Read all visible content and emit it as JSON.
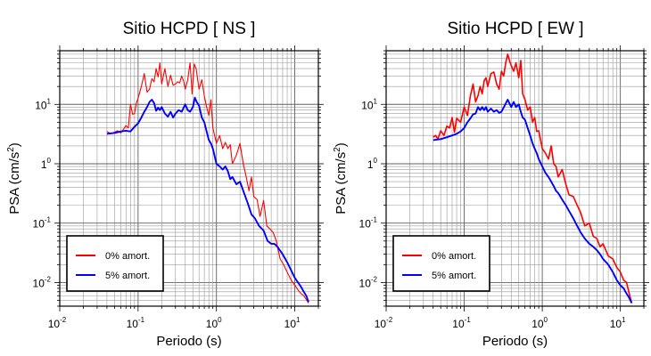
{
  "chart_data": [
    {
      "type": "line",
      "title": "Sitio HCPD [ NS ]",
      "xlabel": "Periodo (s)",
      "ylabel": "PSA (cm/s2)",
      "x_scale": "log",
      "y_scale": "log",
      "xlim": [
        0.01,
        20
      ],
      "ylim": [
        0.004,
        80
      ],
      "x_ticks": [
        {
          "base": "10",
          "exp": "-2"
        },
        {
          "base": "10",
          "exp": "-1"
        },
        {
          "base": "10",
          "exp": "0"
        },
        {
          "base": "10",
          "exp": "1"
        }
      ],
      "y_ticks": [
        {
          "base": "10",
          "exp": "-2"
        },
        {
          "base": "10",
          "exp": "-1"
        },
        {
          "base": "1",
          "exp": "0"
        },
        {
          "base": "10",
          "exp": "1"
        }
      ],
      "grid": true,
      "legend_position": "bottom-left",
      "series": [
        {
          "name": "0% amort.",
          "color": "#ff0000",
          "x": [
            0.04,
            0.045,
            0.05,
            0.055,
            0.06,
            0.065,
            0.07,
            0.075,
            0.08,
            0.085,
            0.09,
            0.095,
            0.1,
            0.11,
            0.12,
            0.13,
            0.14,
            0.15,
            0.16,
            0.17,
            0.18,
            0.19,
            0.2,
            0.22,
            0.24,
            0.26,
            0.28,
            0.3,
            0.32,
            0.34,
            0.36,
            0.38,
            0.4,
            0.43,
            0.46,
            0.49,
            0.52,
            0.55,
            0.6,
            0.65,
            0.7,
            0.75,
            0.8,
            0.85,
            0.9,
            1.0,
            1.1,
            1.2,
            1.3,
            1.4,
            1.5,
            1.6,
            1.8,
            2.0,
            2.2,
            2.4,
            2.6,
            2.8,
            3.0,
            3.3,
            3.6,
            4.0,
            4.4,
            4.8,
            5.3,
            5.8,
            6.5,
            7.2,
            8,
            9,
            10,
            11,
            12,
            13,
            14,
            15
          ],
          "values": [
            3.5,
            3.2,
            3.4,
            3.6,
            3.3,
            3.8,
            4.4,
            4.0,
            10.0,
            6.8,
            7.0,
            10.5,
            12.8,
            20.0,
            33.0,
            16.0,
            18.0,
            27.0,
            24.0,
            40.0,
            29.0,
            50.0,
            22.0,
            40.0,
            20.0,
            31.0,
            21.0,
            22.0,
            24.0,
            23.0,
            30.0,
            25.0,
            18.0,
            26.0,
            50.0,
            15.0,
            48.0,
            40.0,
            18.0,
            26.0,
            14.0,
            9.0,
            6.5,
            12.0,
            4.0,
            2.2,
            3.0,
            1.8,
            2.3,
            1.8,
            2.1,
            1.0,
            1.4,
            2.2,
            1.0,
            0.6,
            0.35,
            0.6,
            0.28,
            0.25,
            0.13,
            0.24,
            0.09,
            0.08,
            0.07,
            0.05,
            0.025,
            0.02,
            0.015,
            0.011,
            0.009,
            0.0075,
            0.0065,
            0.006,
            0.0052,
            0.0045
          ]
        },
        {
          "name": "5% amort.",
          "color": "#0000ff",
          "x": [
            0.04,
            0.05,
            0.06,
            0.07,
            0.08,
            0.09,
            0.1,
            0.11,
            0.12,
            0.13,
            0.14,
            0.15,
            0.16,
            0.17,
            0.18,
            0.19,
            0.2,
            0.22,
            0.24,
            0.26,
            0.28,
            0.3,
            0.33,
            0.36,
            0.4,
            0.43,
            0.46,
            0.5,
            0.53,
            0.56,
            0.6,
            0.65,
            0.7,
            0.75,
            0.8,
            0.85,
            0.9,
            1.0,
            1.1,
            1.2,
            1.3,
            1.4,
            1.5,
            1.6,
            1.8,
            2.0,
            2.2,
            2.5,
            2.8,
            3.1,
            3.5,
            4.0,
            4.5,
            5.0,
            5.5,
            6.0,
            7.0,
            8.0,
            9.0,
            10,
            11,
            12,
            13,
            14,
            15
          ],
          "values": [
            3.2,
            3.3,
            3.5,
            3.6,
            3.5,
            4.2,
            4.8,
            6.0,
            7.5,
            9.0,
            11.0,
            12.0,
            10.5,
            7.8,
            8.8,
            8.0,
            9.0,
            7.0,
            6.2,
            7.5,
            6.0,
            7.0,
            8.0,
            7.5,
            10.0,
            8.0,
            7.5,
            9.0,
            13.0,
            11.0,
            9.5,
            6.0,
            5.0,
            3.5,
            2.5,
            2.2,
            1.8,
            1.0,
            0.9,
            0.8,
            0.9,
            0.75,
            0.55,
            0.6,
            0.45,
            0.5,
            0.35,
            0.22,
            0.14,
            0.12,
            0.09,
            0.075,
            0.05,
            0.045,
            0.045,
            0.04,
            0.03,
            0.022,
            0.016,
            0.012,
            0.01,
            0.0085,
            0.007,
            0.006,
            0.0047
          ]
        }
      ]
    },
    {
      "type": "line",
      "title": "Sitio HCPD [ EW ]",
      "xlabel": "Periodo (s)",
      "ylabel": "PSA (cm/s2)",
      "x_scale": "log",
      "y_scale": "log",
      "xlim": [
        0.01,
        20
      ],
      "ylim": [
        0.004,
        80
      ],
      "x_ticks": [
        {
          "base": "10",
          "exp": "-2"
        },
        {
          "base": "10",
          "exp": "-1"
        },
        {
          "base": "10",
          "exp": "0"
        },
        {
          "base": "10",
          "exp": "1"
        }
      ],
      "y_ticks": [
        {
          "base": "10",
          "exp": "-2"
        },
        {
          "base": "10",
          "exp": "-1"
        },
        {
          "base": "1",
          "exp": "0"
        },
        {
          "base": "10",
          "exp": "1"
        }
      ],
      "grid": true,
      "legend_position": "bottom-left",
      "series": [
        {
          "name": "0% amort.",
          "color": "#ff0000",
          "x": [
            0.04,
            0.043,
            0.046,
            0.05,
            0.055,
            0.06,
            0.065,
            0.07,
            0.075,
            0.08,
            0.09,
            0.1,
            0.11,
            0.12,
            0.13,
            0.14,
            0.15,
            0.16,
            0.17,
            0.18,
            0.19,
            0.2,
            0.22,
            0.24,
            0.26,
            0.28,
            0.3,
            0.32,
            0.34,
            0.36,
            0.38,
            0.4,
            0.43,
            0.46,
            0.5,
            0.53,
            0.56,
            0.6,
            0.65,
            0.7,
            0.75,
            0.8,
            0.85,
            0.9,
            1.0,
            1.1,
            1.2,
            1.3,
            1.4,
            1.5,
            1.6,
            1.8,
            2.0,
            2.2,
            2.5,
            2.8,
            3.1,
            3.5,
            4.0,
            4.5,
            5.0,
            5.5,
            6.0,
            7.0,
            8.0,
            9.0,
            10,
            11,
            12,
            13,
            14
          ],
          "values": [
            2.8,
            3.0,
            2.6,
            3.6,
            3.0,
            4.3,
            4.0,
            6.0,
            3.4,
            5.8,
            5.0,
            9.0,
            6.5,
            14.0,
            22.0,
            11.0,
            14.0,
            20.0,
            15.0,
            25.0,
            28.0,
            20.0,
            33.0,
            35.0,
            22.0,
            18.0,
            36.0,
            30.0,
            50.0,
            70.0,
            55.0,
            45.0,
            36.0,
            50.0,
            28.0,
            55.0,
            15.0,
            12.0,
            8.0,
            9.0,
            5.0,
            6.0,
            3.5,
            3.6,
            1.8,
            1.5,
            1.2,
            2.0,
            1.0,
            0.9,
            0.6,
            0.8,
            0.45,
            0.3,
            0.28,
            0.2,
            0.15,
            0.09,
            0.1,
            0.06,
            0.055,
            0.04,
            0.045,
            0.028,
            0.025,
            0.018,
            0.015,
            0.011,
            0.01,
            0.0065,
            0.0045
          ]
        },
        {
          "name": "5% amort.",
          "color": "#0000ff",
          "x": [
            0.04,
            0.05,
            0.06,
            0.07,
            0.08,
            0.09,
            0.1,
            0.11,
            0.12,
            0.13,
            0.14,
            0.15,
            0.16,
            0.17,
            0.18,
            0.19,
            0.2,
            0.22,
            0.24,
            0.26,
            0.28,
            0.3,
            0.33,
            0.36,
            0.4,
            0.43,
            0.46,
            0.5,
            0.53,
            0.56,
            0.6,
            0.65,
            0.7,
            0.75,
            0.8,
            0.85,
            0.9,
            1.0,
            1.1,
            1.2,
            1.3,
            1.4,
            1.5,
            1.6,
            1.8,
            2.0,
            2.2,
            2.5,
            2.8,
            3.1,
            3.5,
            4.0,
            4.5,
            5.0,
            5.5,
            6.0,
            7.0,
            8.0,
            9.0,
            10,
            11,
            12,
            13,
            14
          ],
          "values": [
            2.5,
            2.6,
            2.8,
            3.0,
            3.2,
            3.5,
            4.0,
            5.0,
            5.8,
            6.8,
            7.0,
            9.0,
            8.0,
            9.0,
            8.0,
            9.0,
            7.5,
            8.5,
            7.5,
            8.0,
            7.2,
            7.5,
            9.5,
            12.0,
            9.0,
            11.0,
            9.0,
            10.0,
            7.5,
            6.0,
            5.5,
            4.0,
            3.0,
            2.2,
            1.8,
            1.5,
            1.2,
            0.9,
            0.7,
            0.6,
            0.5,
            0.42,
            0.35,
            0.32,
            0.25,
            0.2,
            0.16,
            0.12,
            0.09,
            0.07,
            0.055,
            0.045,
            0.04,
            0.035,
            0.03,
            0.025,
            0.02,
            0.015,
            0.011,
            0.009,
            0.008,
            0.0065,
            0.0055,
            0.0045
          ]
        }
      ]
    }
  ]
}
